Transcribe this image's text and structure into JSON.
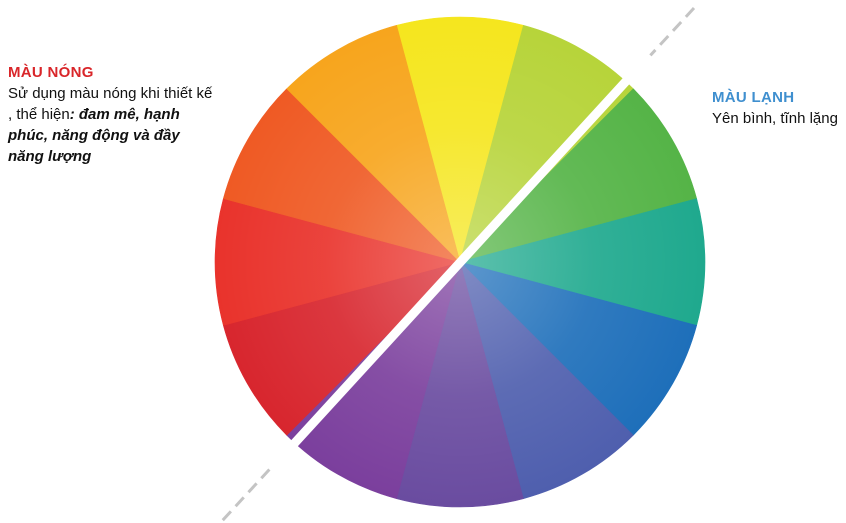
{
  "warm": {
    "title": "MÀU NÓNG",
    "desc_intro": "Sử dụng màu nóng khi thiết kế , thể hiện",
    "desc_emph": ": đam mê, hạnh phúc, năng động và đầy năng lượng",
    "title_color": "#d9262a"
  },
  "cool": {
    "title": "MÀU LẠNH",
    "desc": "Yên bình, tĩnh lặng",
    "title_color": "#3f8fcf"
  },
  "wheel": {
    "divider_color": "#c4c4c4",
    "segments": [
      {
        "name": "yellow",
        "color": "#f5e61e"
      },
      {
        "name": "yellow-green",
        "color": "#b7d43a"
      },
      {
        "name": "green",
        "color": "#55b447"
      },
      {
        "name": "teal",
        "color": "#1fa98e"
      },
      {
        "name": "blue",
        "color": "#1e6fba"
      },
      {
        "name": "blue-violet",
        "color": "#4f5fae"
      },
      {
        "name": "violet",
        "color": "#6a4ca0"
      },
      {
        "name": "purple",
        "color": "#7b3f9d"
      },
      {
        "name": "magenta-red",
        "color": "#d8262e"
      },
      {
        "name": "red",
        "color": "#e9332c"
      },
      {
        "name": "red-orange",
        "color": "#ef5a24"
      },
      {
        "name": "orange",
        "color": "#f7a51d"
      }
    ]
  }
}
